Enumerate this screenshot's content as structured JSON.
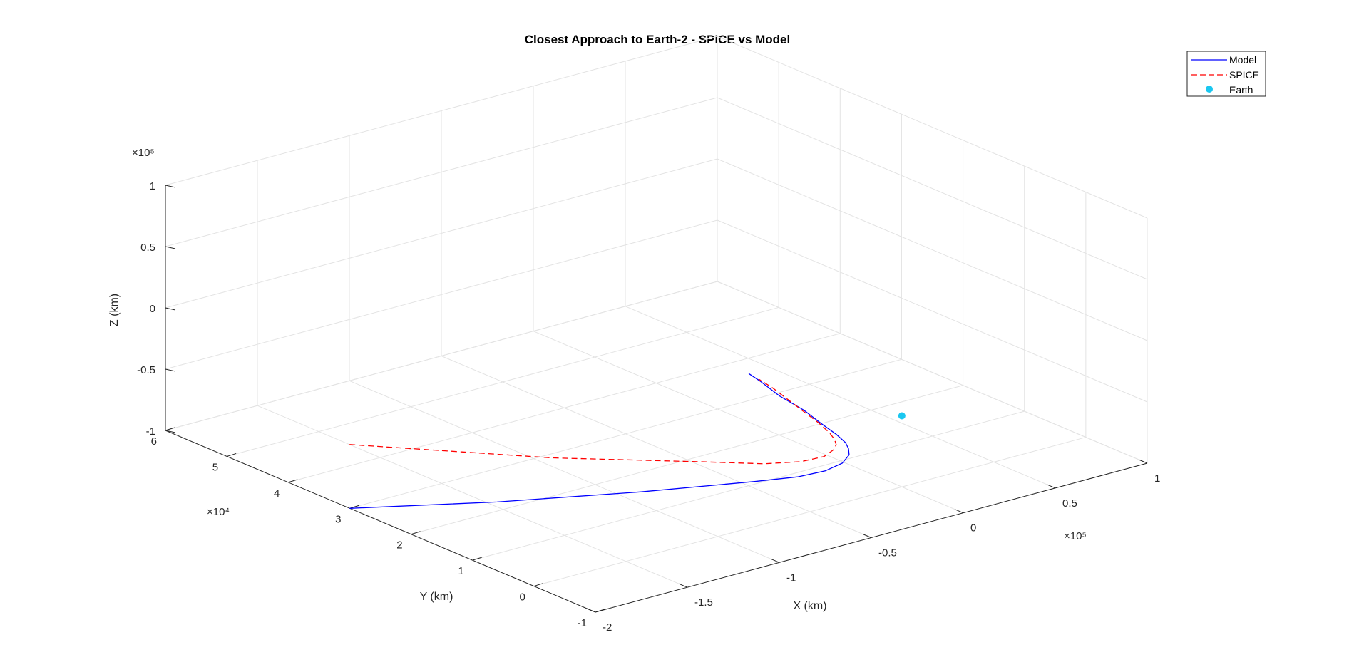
{
  "chart_data": {
    "type": "line3d",
    "title": "Closest Approach to Earth-2 - SPICE vs Model",
    "xlabel": "X (km)",
    "ylabel": "Y (km)",
    "zlabel": "Z (km)",
    "x_exponent": "×10⁵",
    "y_exponent": "×10⁴",
    "z_exponent": "×10⁵",
    "xlim": [
      -200000,
      100000
    ],
    "ylim": [
      -10000,
      60000
    ],
    "zlim": [
      -100000,
      100000
    ],
    "x_ticks": [
      -200000,
      -150000,
      -100000,
      -50000,
      0,
      50000,
      100000
    ],
    "x_tick_labels": [
      "-2",
      "-1.5",
      "-1",
      "-0.5",
      "0",
      "0.5",
      "1"
    ],
    "y_ticks": [
      -10000,
      0,
      10000,
      20000,
      30000,
      40000,
      50000,
      60000
    ],
    "y_tick_labels": [
      "-1",
      "0",
      "1",
      "2",
      "3",
      "4",
      "5",
      "6"
    ],
    "z_ticks": [
      -100000,
      -50000,
      0,
      50000,
      100000
    ],
    "z_tick_labels": [
      "-1",
      "-0.5",
      "0",
      "0.5",
      "1"
    ],
    "grid": true,
    "legend_position": "top-right",
    "series": [
      {
        "name": "Model",
        "color": "#0000ff",
        "dash": "solid",
        "points": [
          [
            -200000,
            30000,
            -100000
          ],
          [
            -150000,
            21000,
            -96000
          ],
          [
            -100000,
            12500,
            -90000
          ],
          [
            -60000,
            6000,
            -84000
          ],
          [
            -45000,
            3500,
            -81000
          ],
          [
            -35000,
            2000,
            -77000
          ],
          [
            -29000,
            1000,
            -71000
          ],
          [
            -27000,
            500,
            -64000
          ],
          [
            -29000,
            0,
            -57000
          ],
          [
            -34000,
            -1000,
            -48000
          ],
          [
            -44000,
            -2500,
            -34000
          ],
          [
            -60000,
            -5000,
            -14000
          ],
          [
            -80000,
            -8000,
            12000
          ],
          [
            -100000,
            -10000,
            36000
          ],
          [
            -120000,
            -13000,
            62000
          ],
          [
            -135000,
            -15500,
            80000
          ]
        ]
      },
      {
        "name": "SPICE",
        "color": "#ff0000",
        "dash": "dashed",
        "points": [
          [
            -150000,
            45000,
            -100000
          ],
          [
            -100000,
            27000,
            -93000
          ],
          [
            -60000,
            14000,
            -85000
          ],
          [
            -45000,
            9000,
            -82000
          ],
          [
            -35000,
            6000,
            -78000
          ],
          [
            -29000,
            4000,
            -72000
          ],
          [
            -27000,
            3000,
            -65000
          ],
          [
            -29000,
            2000,
            -58000
          ],
          [
            -35000,
            500,
            -48000
          ],
          [
            -46000,
            -2000,
            -33000
          ],
          [
            -62000,
            -5000,
            -12000
          ],
          [
            -82000,
            -8500,
            13000
          ],
          [
            -102000,
            -12000,
            38000
          ],
          [
            -122000,
            -15500,
            63000
          ],
          [
            -138000,
            -18000,
            82000
          ]
        ]
      },
      {
        "name": "Earth",
        "color": "#1ac7f0",
        "marker": "circle",
        "points": [
          [
            0,
            0,
            -42000
          ]
        ]
      }
    ]
  }
}
